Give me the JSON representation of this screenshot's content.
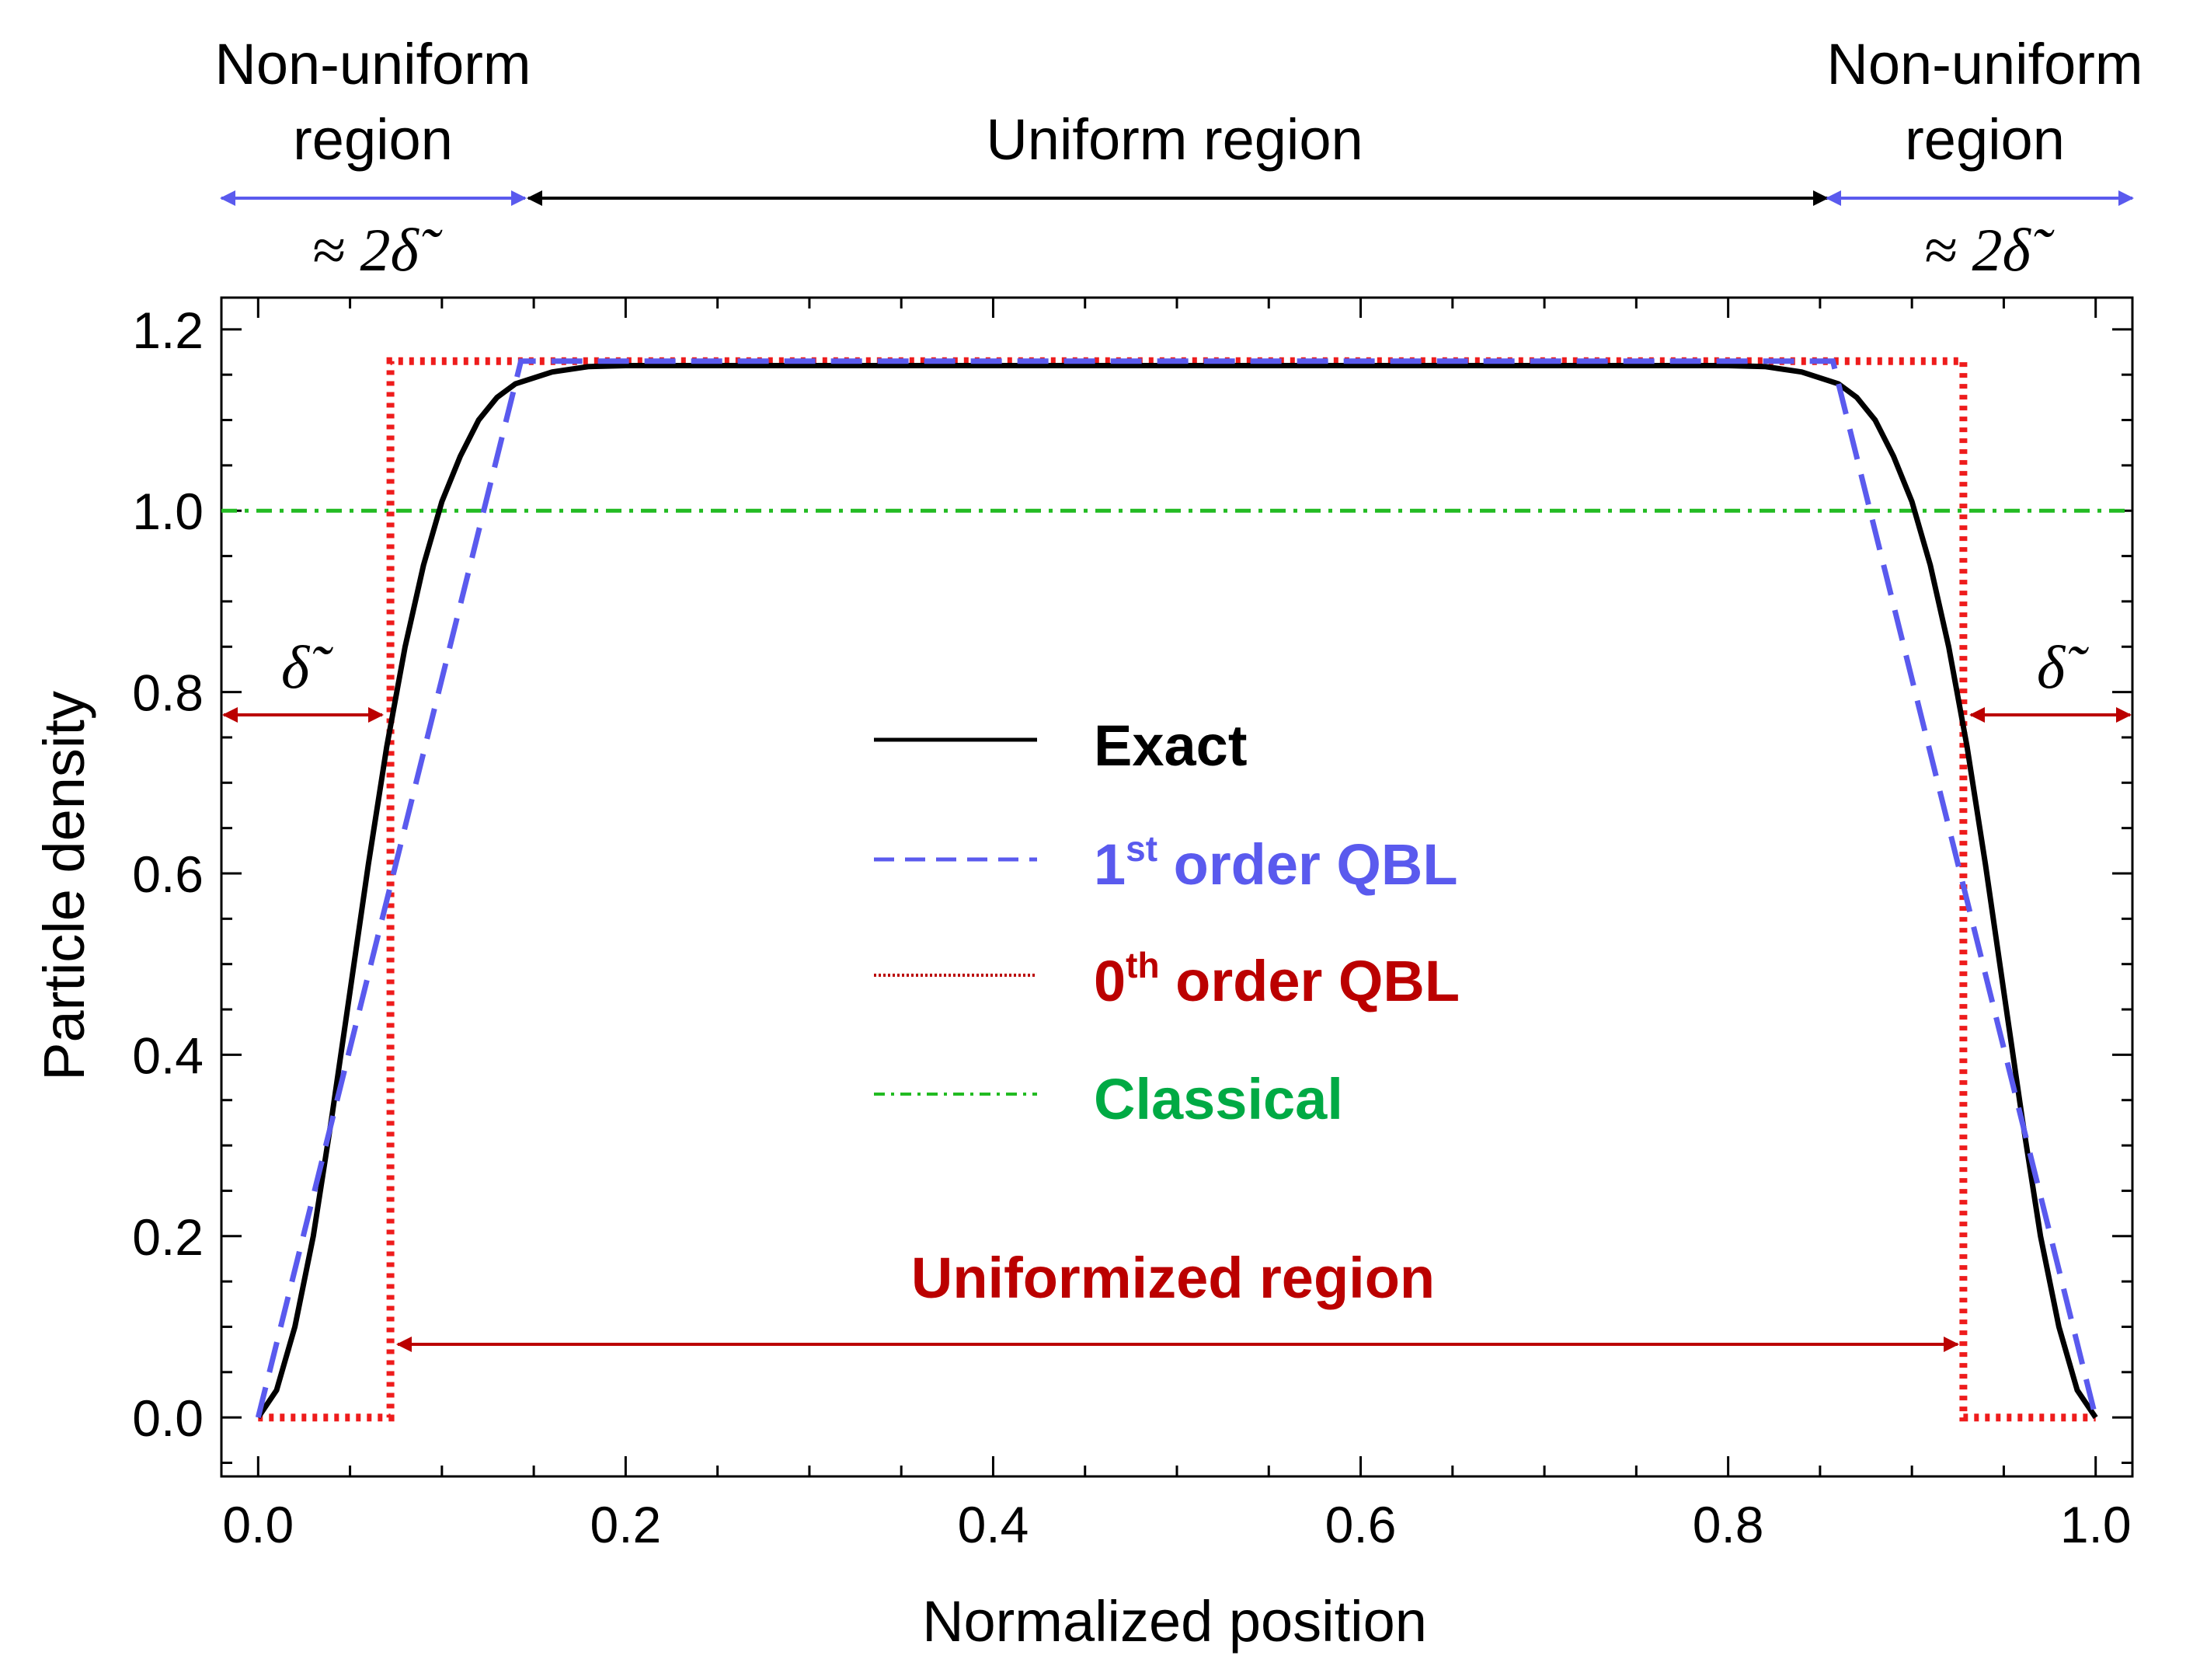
{
  "chart_data": {
    "type": "line",
    "xlabel": "Normalized position",
    "ylabel": "Particle density",
    "xlim": [
      -0.02,
      1.02
    ],
    "ylim": [
      -0.065,
      1.235
    ],
    "x_ticks": [
      0.0,
      0.2,
      0.4,
      0.6,
      0.8,
      1.0
    ],
    "x_tick_labels": [
      "0.0",
      "0.2",
      "0.4",
      "0.6",
      "0.8",
      "1.0"
    ],
    "y_ticks": [
      0.0,
      0.2,
      0.4,
      0.6,
      0.8,
      1.0,
      1.2
    ],
    "y_tick_labels": [
      "0.0",
      "0.2",
      "0.4",
      "0.6",
      "0.8",
      "1.0",
      "1.2"
    ],
    "grid": false,
    "legend_position": "center",
    "series": [
      {
        "name": "Exact",
        "color": "#000000",
        "style": "solid",
        "x": [
          0.0,
          0.01,
          0.02,
          0.03,
          0.04,
          0.05,
          0.06,
          0.07,
          0.08,
          0.09,
          0.1,
          0.11,
          0.12,
          0.13,
          0.14,
          0.16,
          0.18,
          0.2,
          0.25,
          0.3,
          0.5,
          0.7,
          0.75,
          0.8,
          0.82,
          0.84,
          0.86,
          0.87,
          0.88,
          0.89,
          0.9,
          0.91,
          0.92,
          0.93,
          0.94,
          0.95,
          0.96,
          0.97,
          0.98,
          0.99,
          1.0
        ],
        "y": [
          0.0,
          0.03,
          0.1,
          0.2,
          0.33,
          0.47,
          0.61,
          0.74,
          0.85,
          0.94,
          1.01,
          1.06,
          1.1,
          1.125,
          1.14,
          1.153,
          1.159,
          1.16,
          1.16,
          1.16,
          1.16,
          1.16,
          1.16,
          1.16,
          1.159,
          1.153,
          1.14,
          1.125,
          1.1,
          1.06,
          1.01,
          0.94,
          0.85,
          0.74,
          0.61,
          0.47,
          0.33,
          0.2,
          0.1,
          0.03,
          0.0
        ]
      },
      {
        "name": "1st order QBL",
        "color": "#5a5aee",
        "style": "dashed",
        "x": [
          0.0,
          0.143,
          0.857,
          1.0
        ],
        "y": [
          0.0,
          1.165,
          1.165,
          0.0
        ]
      },
      {
        "name": "0th order QBL",
        "color": "#ee1c1c",
        "style": "dotted",
        "x": [
          0.0,
          0.072,
          0.072,
          0.928,
          0.928,
          1.0
        ],
        "y": [
          0.0,
          0.0,
          1.165,
          1.165,
          0.0,
          0.0
        ]
      },
      {
        "name": "Classical",
        "color": "#22bb22",
        "style": "dashdot",
        "x": [
          -0.02,
          1.02
        ],
        "y": [
          1.0,
          1.0
        ]
      }
    ],
    "legend": [
      {
        "label": "Exact",
        "sup": "",
        "label_rest": "",
        "color": "#000000"
      },
      {
        "label": "1",
        "sup": "st",
        "label_rest": " order QBL",
        "color": "#5a5aee"
      },
      {
        "label": "0",
        "sup": "th",
        "label_rest": " order QBL",
        "color": "#bb0000"
      },
      {
        "label": "Classical",
        "sup": "",
        "label_rest": "",
        "color": "#00aa44"
      }
    ],
    "annotations": {
      "nonuniform_left": [
        "Non-uniform",
        "region"
      ],
      "nonuniform_right": [
        "Non-uniform",
        "region"
      ],
      "uniform_region": "Uniform region",
      "approx_left": "≈ 2δ̃",
      "approx_right": "≈ 2δ̃",
      "delta_left": "δ̃",
      "delta_right": "δ̃",
      "uniformized_region": "Uniformized region",
      "annotation_colors": {
        "blue_arrow": "#5a5aee",
        "black_arrow": "#000000",
        "red_arrow": "#bb0000",
        "uniformized_text": "#bb0000"
      }
    }
  }
}
